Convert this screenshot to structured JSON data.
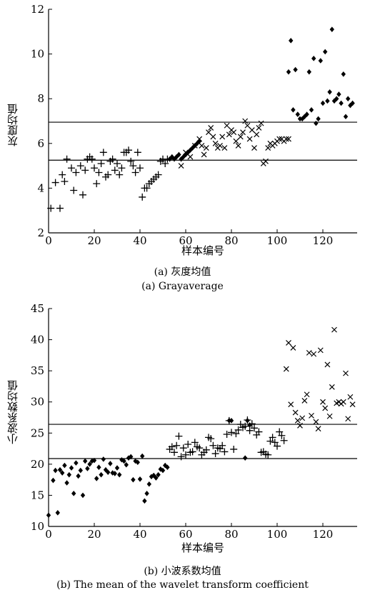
{
  "captions": {
    "a_line1": "(a) 灰度均值",
    "a_line2": "(a) Grayaverage",
    "b_line1": "(b) 小波系数均值",
    "b_line2": "(b) The mean of the wavelet transform coefficient"
  },
  "chart_data": [
    {
      "type": "scatter",
      "id": "a",
      "xlabel": "样本编号",
      "ylabel": "灰度均值",
      "xlim": [
        0,
        135
      ],
      "ylim": [
        2,
        12
      ],
      "xticks": [
        0,
        20,
        40,
        60,
        80,
        100,
        120
      ],
      "yticks": [
        2,
        4,
        6,
        8,
        10,
        12
      ],
      "grid": false,
      "hlines": [
        6.95,
        5.25
      ],
      "series": [
        {
          "marker": "plus",
          "x": [
            1,
            3,
            5,
            6,
            7,
            8,
            10,
            11,
            12,
            14,
            15,
            16,
            17,
            18,
            19,
            20,
            21,
            22,
            23,
            24,
            25,
            26,
            27,
            28,
            29,
            30,
            31,
            32,
            33,
            34,
            35,
            36,
            37,
            38,
            39,
            40,
            41,
            42,
            43,
            44,
            45,
            46,
            47,
            48,
            49,
            50,
            51,
            52
          ],
          "y": [
            3.1,
            4.25,
            3.1,
            4.6,
            4.3,
            5.3,
            4.9,
            3.9,
            4.7,
            5.0,
            3.7,
            4.8,
            5.3,
            5.4,
            5.3,
            4.9,
            4.2,
            4.7,
            5.1,
            5.6,
            4.5,
            4.6,
            5.2,
            5.3,
            4.8,
            5.1,
            4.6,
            4.9,
            5.6,
            5.6,
            5.7,
            5.2,
            5.0,
            4.7,
            5.6,
            4.9,
            3.6,
            4.0,
            4.0,
            4.2,
            4.3,
            4.4,
            4.5,
            4.6,
            5.2,
            5.3,
            5.1,
            5.3
          ]
        },
        {
          "marker": "diamond",
          "x": [
            53,
            54,
            55,
            56,
            57,
            58,
            59,
            60,
            61,
            62,
            63,
            64,
            65,
            66
          ],
          "y": [
            5.3,
            5.4,
            5.3,
            5.4,
            5.5,
            5.3,
            5.4,
            5.5,
            5.6,
            5.7,
            5.8,
            5.9,
            6.0,
            6.1
          ]
        },
        {
          "marker": "cross",
          "x": [
            58,
            60,
            62,
            64,
            66,
            67,
            68,
            69,
            70,
            71,
            72,
            73,
            74,
            75,
            76,
            77,
            78,
            79,
            80,
            81,
            82,
            83,
            84,
            85,
            86,
            87,
            88,
            89,
            90,
            91,
            92,
            93,
            94,
            95,
            96,
            97,
            98,
            99,
            100,
            101,
            102,
            103,
            104,
            105
          ],
          "y": [
            5.0,
            5.6,
            5.4,
            5.9,
            6.2,
            5.9,
            5.5,
            5.8,
            6.5,
            6.7,
            6.3,
            6.0,
            5.8,
            5.9,
            6.3,
            5.8,
            6.8,
            6.4,
            6.6,
            6.5,
            6.1,
            5.9,
            6.3,
            6.5,
            7.0,
            6.8,
            6.2,
            6.6,
            5.8,
            6.4,
            6.7,
            6.9,
            5.1,
            5.2,
            5.8,
            6.0,
            5.9,
            6.0,
            6.1,
            6.2,
            6.2,
            6.1,
            6.2,
            6.2
          ]
        },
        {
          "marker": "diamond",
          "x": [
            105,
            106,
            107,
            108,
            109,
            110,
            111,
            112,
            113,
            114,
            115,
            116,
            117,
            118,
            119,
            120,
            121,
            122,
            123,
            124,
            125,
            126,
            127,
            128,
            129,
            130,
            131,
            132,
            133
          ],
          "y": [
            9.2,
            10.6,
            7.5,
            9.3,
            7.3,
            7.1,
            7.1,
            7.2,
            7.3,
            9.2,
            7.5,
            9.8,
            6.9,
            7.1,
            9.7,
            7.8,
            10.1,
            7.9,
            8.3,
            11.1,
            7.9,
            8.0,
            8.2,
            7.8,
            9.1,
            7.2,
            8.0,
            7.7,
            7.8
          ]
        }
      ]
    },
    {
      "type": "scatter",
      "id": "b",
      "xlabel": "样本编号",
      "ylabel": "小波系数均值",
      "xlim": [
        0,
        135
      ],
      "ylim": [
        10,
        45
      ],
      "xticks": [
        0,
        20,
        40,
        60,
        80,
        100,
        120
      ],
      "yticks": [
        10,
        15,
        20,
        25,
        30,
        35,
        40,
        45
      ],
      "grid": false,
      "hlines": [
        26.4,
        20.9
      ],
      "series": [
        {
          "marker": "diamond",
          "x": [
            0,
            2,
            3,
            4,
            5,
            6,
            7,
            8,
            9,
            10,
            11,
            12,
            13,
            14,
            15,
            16,
            17,
            18,
            19,
            20,
            21,
            22,
            23,
            24,
            25,
            26,
            27,
            28,
            29,
            30,
            31,
            32,
            33,
            34,
            35,
            36,
            37,
            38,
            39,
            40,
            41,
            42,
            43,
            44,
            45,
            46,
            47,
            48,
            49,
            50,
            51,
            52
          ],
          "y": [
            11.8,
            17.4,
            19.0,
            12.2,
            19.1,
            18.6,
            19.8,
            17.0,
            18.3,
            19.4,
            15.3,
            20.2,
            18.1,
            19.0,
            15.0,
            20.5,
            19.3,
            20.0,
            20.5,
            20.6,
            17.7,
            19.5,
            18.3,
            20.8,
            19.1,
            18.7,
            20.1,
            18.6,
            18.5,
            19.4,
            18.3,
            20.7,
            20.5,
            19.9,
            21.0,
            21.2,
            17.5,
            20.5,
            20.3,
            17.6,
            21.3,
            14.1,
            15.3,
            16.8,
            18.0,
            18.2,
            17.8,
            18.3,
            19.2,
            19.0,
            19.8,
            19.5
          ]
        },
        {
          "marker": "plus",
          "x": [
            53,
            54,
            55,
            56,
            57,
            58,
            59,
            60,
            61,
            62,
            63,
            64,
            65,
            66,
            67,
            68,
            69,
            70,
            71,
            72,
            73,
            74,
            75,
            76,
            77,
            78,
            79,
            80,
            81,
            82,
            83,
            84,
            85,
            86,
            87,
            88,
            89,
            90,
            91,
            92,
            93,
            94,
            95,
            96,
            97,
            98,
            99,
            100,
            101,
            102,
            103
          ],
          "y": [
            22.4,
            22.8,
            21.9,
            23.0,
            24.5,
            21.2,
            22.6,
            21.5,
            23.2,
            21.9,
            22.0,
            23.5,
            22.8,
            22.6,
            21.5,
            21.9,
            22.3,
            24.3,
            24.1,
            23.0,
            21.7,
            22.6,
            22.5,
            23.0,
            22.0,
            24.8,
            27.0,
            25.1,
            22.4,
            24.9,
            25.5,
            26.4,
            25.9,
            26.1,
            27.1,
            25.4,
            26.5,
            25.8,
            24.7,
            25.2,
            21.9,
            22.0,
            21.6,
            21.5,
            23.7,
            24.3,
            23.5,
            22.9,
            25.2,
            24.6,
            23.8
          ]
        },
        {
          "marker": "diamond",
          "x": [
            79,
            80,
            86,
            87,
            88
          ],
          "y": [
            27.0,
            27.0,
            21.0,
            27.0,
            26.3
          ]
        },
        {
          "marker": "cross",
          "x": [
            104,
            105,
            106,
            107,
            108,
            109,
            110,
            111,
            112,
            113,
            114,
            115,
            116,
            117,
            118,
            119,
            120,
            121,
            122,
            123,
            124,
            125,
            126,
            127,
            128,
            129,
            130,
            131,
            132,
            133
          ],
          "y": [
            35.3,
            39.5,
            29.6,
            38.7,
            28.3,
            27.0,
            26.2,
            27.4,
            30.2,
            31.2,
            37.9,
            27.8,
            37.7,
            26.8,
            25.7,
            38.3,
            30.0,
            29.0,
            36.0,
            27.7,
            32.4,
            41.6,
            29.8,
            30.0,
            29.7,
            30.0,
            34.6,
            27.3,
            30.8,
            29.6
          ]
        }
      ]
    }
  ]
}
